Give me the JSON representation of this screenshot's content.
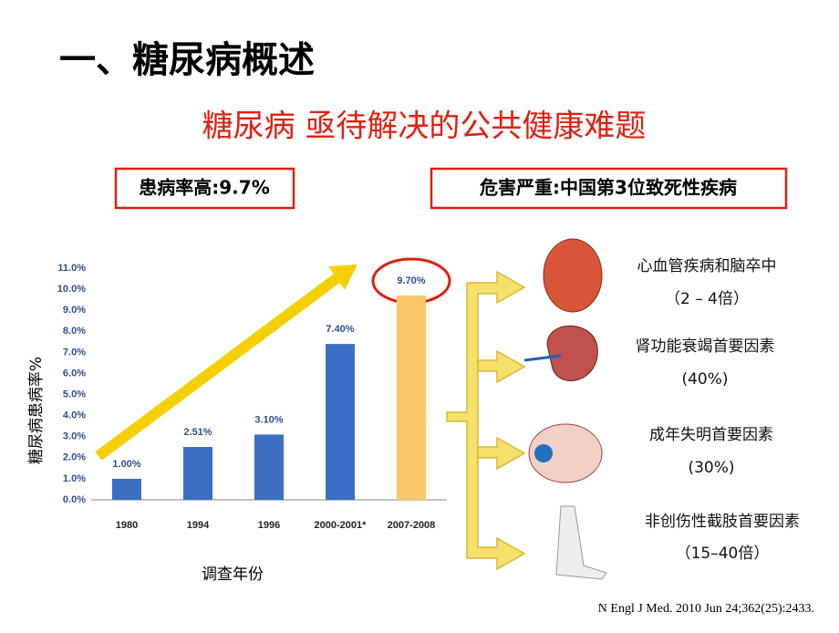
{
  "header": {
    "title": "一、糖尿病概述",
    "subtitle": "糖尿病 亟待解决的公共健康难题"
  },
  "boxes": [
    "患病率高:9.7%",
    "危害严重:中国第3位致死性疾病"
  ],
  "complications": [
    {
      "label": "心血管疾病和脑卒中",
      "detail": "（2 – 4倍）"
    },
    {
      "label": "肾功能衰竭首要因素",
      "detail": "(40%)"
    },
    {
      "label": "成年失明首要因素",
      "detail": "(30%)"
    },
    {
      "label": "非创伤性截肢首要因素",
      "detail": "（15–40倍）"
    }
  ],
  "citation": "N Engl J Med. 2010 Jun 24;362(25):2433.",
  "chart_data": {
    "type": "bar",
    "categories": [
      "1980",
      "1994",
      "1996",
      "2000-2001*",
      "2007-2008"
    ],
    "values": [
      1.0,
      2.51,
      3.1,
      7.4,
      9.7
    ],
    "value_labels": [
      "1.00%",
      "2.51%",
      "3.10%",
      "7.40%",
      "9.70%"
    ],
    "colors": [
      "#3a6fc4",
      "#3a6fc4",
      "#3a6fc4",
      "#3a6fc4",
      "#f9c76b"
    ],
    "ylabel": "糖尿病患病率%",
    "xlabel": "调查年份",
    "ylim": [
      0,
      11
    ],
    "yticks": [
      {
        "value": 0,
        "label": "0.0%"
      },
      {
        "value": 1,
        "label": "1.0%"
      },
      {
        "value": 2,
        "label": "2.0%"
      },
      {
        "value": 3,
        "label": "3.0%"
      },
      {
        "value": 4,
        "label": "4.0%"
      },
      {
        "value": 5,
        "label": "5.0%"
      },
      {
        "value": 6,
        "label": "6.0%"
      },
      {
        "value": 7,
        "label": "7.0%"
      },
      {
        "value": 8,
        "label": "8.0%"
      },
      {
        "value": 9,
        "label": "9.0%"
      },
      {
        "value": 10,
        "label": "10.0%"
      },
      {
        "value": 11,
        "label": "11.0%"
      }
    ]
  }
}
